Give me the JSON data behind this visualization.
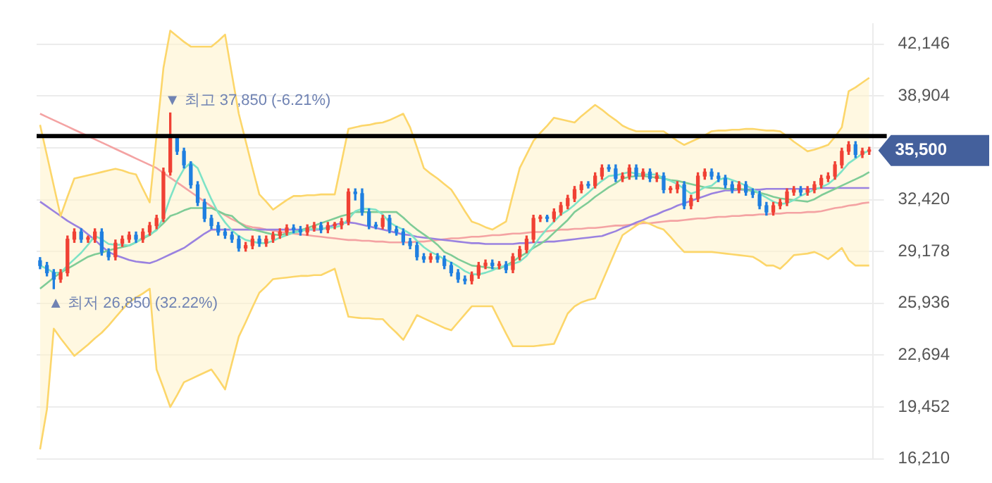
{
  "chart_data": {
    "type": "candlestick",
    "categories": [
      null,
      null,
      null,
      null,
      null,
      null,
      null,
      null,
      null,
      null,
      null,
      null,
      null,
      null,
      null,
      null,
      null,
      null,
      null,
      null,
      null,
      null,
      null,
      null,
      null,
      null,
      null,
      null,
      null,
      null,
      null,
      null,
      null,
      null,
      null,
      null,
      null,
      null,
      null,
      null,
      null,
      null,
      null,
      null,
      null,
      null,
      null,
      null,
      null,
      null,
      null,
      null,
      null,
      null,
      null,
      null,
      null,
      null,
      null,
      null,
      null,
      null,
      null,
      null,
      null,
      null,
      null,
      null,
      null,
      null,
      null,
      null,
      null,
      null,
      null,
      null,
      null,
      null,
      null,
      null,
      null,
      null,
      null,
      null,
      null,
      null,
      null,
      null,
      null,
      null,
      null,
      null,
      null,
      null,
      null,
      null,
      null,
      null,
      null,
      null,
      null,
      null,
      null,
      null,
      null,
      null,
      null,
      null,
      null,
      null,
      null,
      null,
      null,
      null,
      null,
      null,
      null,
      null,
      null,
      null,
      null,
      null
    ],
    "ohlc": [
      [
        28600,
        28800,
        28100,
        28300
      ],
      [
        28300,
        28500,
        27650,
        27850
      ],
      [
        27850,
        28050,
        26850,
        27450
      ],
      [
        27450,
        28050,
        27250,
        27850
      ],
      [
        27850,
        30150,
        27650,
        29950
      ],
      [
        29950,
        30600,
        29750,
        30400
      ],
      [
        30400,
        30600,
        29750,
        29950
      ],
      [
        29950,
        30150,
        29750,
        29950
      ],
      [
        29950,
        30600,
        29750,
        30400
      ],
      [
        30400,
        30600,
        28950,
        29150
      ],
      [
        29150,
        29350,
        28650,
        28850
      ],
      [
        28850,
        29900,
        28650,
        29700
      ],
      [
        29700,
        30150,
        29500,
        29950
      ],
      [
        29950,
        30400,
        29750,
        30200
      ],
      [
        30200,
        30400,
        29750,
        29950
      ],
      [
        29950,
        30600,
        29750,
        30400
      ],
      [
        30400,
        31000,
        30200,
        30800
      ],
      [
        30800,
        31450,
        30600,
        31250
      ],
      [
        31250,
        34400,
        31050,
        34150
      ],
      [
        34150,
        37850,
        33950,
        36250
      ],
      [
        36250,
        36450,
        35250,
        35450
      ],
      [
        35450,
        35650,
        34400,
        34600
      ],
      [
        34600,
        34800,
        33150,
        33350
      ],
      [
        33350,
        33550,
        32050,
        32250
      ],
      [
        32250,
        32450,
        31050,
        31250
      ],
      [
        31250,
        31450,
        30600,
        30800
      ],
      [
        30800,
        31000,
        30200,
        30400
      ],
      [
        30400,
        30600,
        30000,
        30200
      ],
      [
        30200,
        30400,
        29750,
        29950
      ],
      [
        29950,
        30150,
        29200,
        29400
      ],
      [
        29400,
        29750,
        29200,
        29550
      ],
      [
        29550,
        30150,
        29350,
        29950
      ],
      [
        29950,
        30150,
        29500,
        29700
      ],
      [
        29700,
        30150,
        29500,
        29950
      ],
      [
        29950,
        30400,
        29750,
        30200
      ],
      [
        30200,
        30600,
        30000,
        30400
      ],
      [
        30400,
        30850,
        30200,
        30650
      ],
      [
        30650,
        30850,
        30350,
        30550
      ],
      [
        30550,
        30750,
        30200,
        30400
      ],
      [
        30400,
        30850,
        30200,
        30650
      ],
      [
        30650,
        31000,
        30450,
        30800
      ],
      [
        30800,
        31000,
        30350,
        30550
      ],
      [
        30550,
        31000,
        30350,
        30800
      ],
      [
        30800,
        31000,
        30600,
        30850
      ],
      [
        30850,
        31250,
        30600,
        31050
      ],
      [
        31050,
        33100,
        30850,
        32900
      ],
      [
        32900,
        33100,
        32400,
        32800
      ],
      [
        32800,
        33100,
        31450,
        31650
      ],
      [
        31650,
        31850,
        30600,
        30800
      ],
      [
        30800,
        31000,
        30600,
        30750
      ],
      [
        30750,
        31450,
        30600,
        31250
      ],
      [
        31250,
        31450,
        30350,
        30550
      ],
      [
        30550,
        30750,
        30200,
        30400
      ],
      [
        30400,
        30600,
        29600,
        29800
      ],
      [
        29800,
        30000,
        29350,
        29550
      ],
      [
        29550,
        29750,
        28650,
        28850
      ],
      [
        28850,
        29050,
        28500,
        28700
      ],
      [
        28700,
        29050,
        28500,
        28850
      ],
      [
        28850,
        29050,
        28500,
        28700
      ],
      [
        28700,
        28900,
        28100,
        28300
      ],
      [
        28300,
        28500,
        27650,
        27850
      ],
      [
        27850,
        28050,
        27250,
        27450
      ],
      [
        27450,
        27650,
        27150,
        27350
      ],
      [
        27350,
        27900,
        27150,
        27700
      ],
      [
        27700,
        28500,
        27500,
        28300
      ],
      [
        28300,
        28650,
        28100,
        28450
      ],
      [
        28450,
        28650,
        28100,
        28300
      ],
      [
        28300,
        28550,
        28100,
        28350
      ],
      [
        28350,
        28550,
        27850,
        28050
      ],
      [
        28050,
        29050,
        27850,
        28850
      ],
      [
        28850,
        29500,
        28650,
        29300
      ],
      [
        29300,
        30150,
        29100,
        29950
      ],
      [
        29950,
        31450,
        29750,
        31250
      ],
      [
        31250,
        31450,
        31050,
        31300
      ],
      [
        31300,
        31450,
        31050,
        31250
      ],
      [
        31250,
        31850,
        31050,
        31650
      ],
      [
        31650,
        32250,
        31450,
        32050
      ],
      [
        32050,
        32700,
        31850,
        32500
      ],
      [
        32500,
        33250,
        32300,
        33050
      ],
      [
        33050,
        33550,
        32850,
        33350
      ],
      [
        33350,
        33550,
        33150,
        33300
      ],
      [
        33300,
        34100,
        33150,
        33900
      ],
      [
        33900,
        34600,
        33700,
        34400
      ],
      [
        34400,
        34600,
        34200,
        34350
      ],
      [
        34350,
        34600,
        33550,
        33750
      ],
      [
        33750,
        34100,
        33550,
        33900
      ],
      [
        33900,
        34600,
        33700,
        34400
      ],
      [
        34400,
        34600,
        33700,
        33900
      ],
      [
        33900,
        34350,
        33700,
        34150
      ],
      [
        34150,
        34350,
        33550,
        33750
      ],
      [
        33750,
        34100,
        33550,
        33900
      ],
      [
        33900,
        34100,
        32850,
        33050
      ],
      [
        33050,
        33250,
        32850,
        33100
      ],
      [
        33100,
        33550,
        32850,
        33350
      ],
      [
        33350,
        33550,
        31850,
        32050
      ],
      [
        32050,
        32700,
        31850,
        32500
      ],
      [
        32500,
        34100,
        32300,
        33900
      ],
      [
        33900,
        34350,
        33700,
        34150
      ],
      [
        34150,
        34350,
        33700,
        33900
      ],
      [
        33900,
        34100,
        33550,
        33750
      ],
      [
        33750,
        33950,
        33150,
        33350
      ],
      [
        33350,
        33550,
        32850,
        33050
      ],
      [
        33050,
        33550,
        32850,
        33350
      ],
      [
        33350,
        33550,
        32700,
        32900
      ],
      [
        32900,
        33100,
        32550,
        32750
      ],
      [
        32750,
        32950,
        31850,
        32050
      ],
      [
        32050,
        32250,
        31450,
        31650
      ],
      [
        31650,
        32250,
        31450,
        32050
      ],
      [
        32050,
        32450,
        31850,
        32250
      ],
      [
        32250,
        33100,
        32050,
        32900
      ],
      [
        32900,
        33250,
        32700,
        33050
      ],
      [
        33050,
        33250,
        32700,
        32900
      ],
      [
        32900,
        33250,
        32700,
        33050
      ],
      [
        33050,
        33550,
        32850,
        33350
      ],
      [
        33350,
        33950,
        33150,
        33750
      ],
      [
        33750,
        34100,
        33550,
        33900
      ],
      [
        33900,
        34800,
        33700,
        34600
      ],
      [
        34600,
        35650,
        34400,
        35450
      ],
      [
        35450,
        36050,
        35250,
        35850
      ],
      [
        35850,
        36050,
        35050,
        35250
      ],
      [
        35250,
        35650,
        35050,
        35450
      ],
      [
        35450,
        35700,
        35250,
        35500
      ]
    ],
    "series": [
      {
        "type": "line",
        "color": "#7ee3c6",
        "values": [
          28300,
          28100,
          27850,
          27850,
          28300,
          28700,
          29100,
          29600,
          30150,
          29950,
          29650,
          29600,
          29600,
          29550,
          29750,
          30050,
          30250,
          30500,
          31300,
          32550,
          33600,
          34350,
          34750,
          34400,
          33400,
          32450,
          31600,
          31000,
          30500,
          30150,
          29900,
          29800,
          29700,
          29700,
          29850,
          30050,
          30200,
          30350,
          30450,
          30550,
          30600,
          30600,
          30650,
          30700,
          30800,
          31200,
          31700,
          31850,
          31850,
          31800,
          31500,
          31000,
          30750,
          30550,
          30300,
          29850,
          29450,
          29150,
          28950,
          28700,
          28500,
          28250,
          27950,
          27750,
          27750,
          27850,
          28000,
          28200,
          28300,
          28400,
          28550,
          28900,
          29500,
          30100,
          30600,
          31050,
          31500,
          31750,
          32100,
          32500,
          32850,
          33250,
          33600,
          33900,
          33950,
          34050,
          34150,
          34050,
          34000,
          34000,
          34000,
          33750,
          33600,
          33400,
          33100,
          32800,
          32950,
          33200,
          33300,
          33650,
          33800,
          33650,
          33500,
          33300,
          33100,
          32800,
          32550,
          32300,
          32150,
          32200,
          32400,
          32650,
          32850,
          33050,
          33200,
          33400,
          33750,
          34200,
          34700,
          35000,
          35300,
          35500
        ]
      },
      {
        "type": "line",
        "color": "#7fcc97",
        "values": [
          26850,
          27200,
          27550,
          27850,
          28100,
          28350,
          28600,
          28850,
          29000,
          29100,
          29250,
          29350,
          29450,
          29550,
          29750,
          30000,
          30200,
          30550,
          30950,
          31400,
          31550,
          31750,
          31900,
          31900,
          31900,
          31900,
          31700,
          31500,
          31400,
          31000,
          30700,
          30550,
          30450,
          30350,
          30250,
          30200,
          30300,
          30400,
          30500,
          30650,
          30800,
          30950,
          31100,
          31250,
          31400,
          31500,
          31650,
          31650,
          31650,
          31650,
          31650,
          31650,
          31650,
          31300,
          30900,
          30550,
          30250,
          29950,
          29600,
          29150,
          28950,
          28700,
          28500,
          28300,
          28250,
          28200,
          28150,
          28100,
          28300,
          28550,
          28850,
          29100,
          29400,
          29650,
          29950,
          30350,
          30750,
          31150,
          31650,
          31950,
          32250,
          32600,
          32900,
          33200,
          33450,
          33750,
          33850,
          33900,
          33900,
          33850,
          33800,
          33750,
          33650,
          33600,
          33500,
          33400,
          33300,
          33200,
          33150,
          33150,
          33100,
          33100,
          33100,
          33050,
          32950,
          32850,
          32750,
          32600,
          32500,
          32450,
          32400,
          32350,
          32300,
          32450,
          32700,
          32900,
          33100,
          33300,
          33500,
          33700,
          33900,
          34150
        ],
        "upper": [
          37100,
          35200,
          33300,
          31400,
          32600,
          33750,
          33850,
          33950,
          34050,
          34150,
          34250,
          34350,
          34250,
          34100,
          34000,
          33100,
          32250,
          36450,
          40650,
          43000,
          42650,
          42300,
          42000,
          42000,
          42000,
          42000,
          42350,
          42750,
          40250,
          37800,
          36100,
          34400,
          32750,
          32300,
          31800,
          32100,
          32400,
          32650,
          32650,
          32700,
          32700,
          32750,
          32750,
          32750,
          34800,
          36850,
          36950,
          37050,
          37100,
          37200,
          37250,
          37400,
          37600,
          37800,
          36950,
          35700,
          34400,
          34050,
          33750,
          33400,
          33050,
          32400,
          31700,
          31050,
          30900,
          30700,
          30550,
          30800,
          31050,
          32750,
          34400,
          35250,
          36100,
          36600,
          37050,
          37550,
          37450,
          37350,
          37250,
          37650,
          38000,
          38350,
          38050,
          37700,
          37400,
          37050,
          36850,
          36700,
          36700,
          36700,
          36700,
          36700,
          36400,
          36100,
          35850,
          36050,
          36250,
          36450,
          36700,
          36750,
          36750,
          36800,
          36800,
          36850,
          36850,
          36800,
          36750,
          36750,
          36700,
          36400,
          36050,
          35750,
          35450,
          35550,
          35700,
          35850,
          36350,
          36950,
          39200,
          39450,
          39750,
          40050
        ],
        "lower": [
          16800,
          19300,
          24350,
          23750,
          23200,
          22650,
          23000,
          23350,
          23750,
          24100,
          24550,
          25050,
          25550,
          26000,
          26300,
          26550,
          26850,
          21800,
          20650,
          19450,
          20200,
          21000,
          21200,
          21400,
          21600,
          21800,
          21200,
          20550,
          22200,
          23850,
          24750,
          25700,
          26600,
          27000,
          27450,
          27500,
          27550,
          27600,
          27650,
          27650,
          27700,
          27700,
          27900,
          28100,
          26600,
          25100,
          25050,
          25000,
          25000,
          24950,
          24950,
          24500,
          24100,
          23650,
          24400,
          25200,
          25000,
          24800,
          24600,
          24400,
          24250,
          24750,
          25250,
          25750,
          25750,
          25750,
          25750,
          24900,
          24050,
          23250,
          23250,
          23250,
          23250,
          23300,
          23350,
          23400,
          24350,
          25300,
          25750,
          26000,
          26150,
          26250,
          27250,
          28250,
          29250,
          30200,
          30500,
          30800,
          31050,
          30900,
          30700,
          30550,
          30100,
          29600,
          29150,
          29150,
          29150,
          29150,
          29150,
          29100,
          29050,
          29000,
          28950,
          28900,
          28850,
          28600,
          28300,
          28300,
          28100,
          28500,
          28950,
          29000,
          29050,
          29150,
          28950,
          28700,
          29050,
          29400,
          28650,
          28300,
          28300,
          28300
        ]
      },
      {
        "type": "line",
        "color": "#fcd66a",
        "values": [
          37100,
          35200,
          33300,
          31400,
          32600,
          33750,
          33850,
          33950,
          34050,
          34150,
          34250,
          34350,
          34250,
          34100,
          34000,
          33100,
          32250,
          36450,
          40650,
          43000,
          42650,
          42300,
          42000,
          42000,
          42000,
          42000,
          42350,
          42750,
          40250,
          37800,
          36100,
          34400,
          32750,
          32300,
          31800,
          32100,
          32400,
          32650,
          32650,
          32700,
          32700,
          32750,
          32750,
          32750,
          34800,
          36850,
          36950,
          37050,
          37100,
          37200,
          37250,
          37400,
          37600,
          37800,
          36950,
          35700,
          34400,
          34050,
          33750,
          33400,
          33050,
          32400,
          31700,
          31050,
          30900,
          30700,
          30550,
          30800,
          31050,
          32750,
          34400,
          35250,
          36100,
          36600,
          37050,
          37550,
          37450,
          37350,
          37250,
          37650,
          38000,
          38350,
          38050,
          37700,
          37400,
          37050,
          36850,
          36700,
          36700,
          36700,
          36700,
          36700,
          36400,
          36100,
          35850,
          36050,
          36250,
          36450,
          36700,
          36750,
          36750,
          36800,
          36800,
          36850,
          36850,
          36800,
          36750,
          36750,
          36700,
          36400,
          36050,
          35750,
          35450,
          35550,
          35700,
          35850,
          36350,
          36950,
          39200,
          39450,
          39750,
          40050
        ]
      },
      {
        "type": "line",
        "color": "#fcd66a",
        "values": [
          16800,
          19300,
          24350,
          23750,
          23200,
          22650,
          23000,
          23350,
          23750,
          24100,
          24550,
          25050,
          25550,
          26000,
          26300,
          26550,
          26850,
          21800,
          20650,
          19450,
          20200,
          21000,
          21200,
          21400,
          21600,
          21800,
          21200,
          20550,
          22200,
          23850,
          24750,
          25700,
          26600,
          27000,
          27450,
          27500,
          27550,
          27600,
          27650,
          27650,
          27700,
          27700,
          27900,
          28100,
          26600,
          25100,
          25050,
          25000,
          25000,
          24950,
          24950,
          24500,
          24100,
          23650,
          24400,
          25200,
          25000,
          24800,
          24600,
          24400,
          24250,
          24750,
          25250,
          25750,
          25750,
          25750,
          25750,
          24900,
          24050,
          23250,
          23250,
          23250,
          23250,
          23300,
          23350,
          23400,
          24350,
          25300,
          25750,
          26000,
          26150,
          26250,
          27250,
          28250,
          29250,
          30200,
          30500,
          30800,
          31050,
          30900,
          30700,
          30550,
          30100,
          29600,
          29150,
          29150,
          29150,
          29150,
          29150,
          29100,
          29050,
          29000,
          28950,
          28900,
          28850,
          28600,
          28300,
          28300,
          28100,
          28500,
          28950,
          29000,
          29050,
          29150,
          28950,
          28700,
          29050,
          29400,
          28650,
          28300,
          28300,
          28300
        ]
      },
      {
        "type": "line",
        "color": "#9a82e0",
        "values": [
          32300,
          32000,
          31700,
          31400,
          31100,
          30850,
          30600,
          30250,
          29900,
          29500,
          29150,
          28950,
          28800,
          28650,
          28550,
          28500,
          28450,
          28600,
          28800,
          29000,
          29200,
          29400,
          29700,
          30000,
          30300,
          30550,
          30550,
          30550,
          30550,
          30550,
          30550,
          30550,
          30550,
          30550,
          30550,
          30550,
          30550,
          30550,
          30550,
          30550,
          30550,
          30550,
          30700,
          30850,
          30950,
          31000,
          30950,
          30850,
          30750,
          30650,
          30550,
          30450,
          30350,
          30250,
          30200,
          30100,
          30050,
          30000,
          29950,
          29900,
          29850,
          29800,
          29750,
          29700,
          29700,
          29650,
          29650,
          29650,
          29650,
          29650,
          29700,
          29700,
          29750,
          29750,
          29800,
          29800,
          29850,
          29900,
          29950,
          30000,
          30050,
          30100,
          30150,
          30300,
          30450,
          30650,
          30800,
          31000,
          31150,
          31350,
          31500,
          31700,
          31850,
          32050,
          32200,
          32350,
          32500,
          32650,
          32800,
          32900,
          33000,
          33000,
          33050,
          33050,
          33050,
          33050,
          33100,
          33100,
          33100,
          33100,
          33100,
          33100,
          33100,
          33100,
          33150,
          33150,
          33150,
          33150,
          33150,
          33150,
          33150,
          33150
        ]
      },
      {
        "type": "line",
        "color": "#f4a3a3",
        "values": [
          37800,
          37600,
          37400,
          37200,
          37000,
          36800,
          36600,
          36400,
          36200,
          36000,
          35800,
          35600,
          35400,
          35200,
          35000,
          34800,
          34600,
          34400,
          34100,
          33800,
          33500,
          33200,
          32900,
          32600,
          32300,
          32000,
          31700,
          31450,
          31200,
          31000,
          30800,
          30700,
          30650,
          30550,
          30500,
          30400,
          30350,
          30300,
          30250,
          30200,
          30150,
          30100,
          30050,
          30000,
          29950,
          29900,
          29900,
          29850,
          29850,
          29800,
          29800,
          29750,
          29750,
          29750,
          29750,
          29800,
          29800,
          29850,
          29900,
          29950,
          30000,
          30000,
          30050,
          30100,
          30100,
          30150,
          30200,
          30200,
          30250,
          30300,
          30300,
          30350,
          30400,
          30400,
          30450,
          30500,
          30550,
          30550,
          30600,
          30600,
          30650,
          30650,
          30700,
          30750,
          30800,
          30800,
          30850,
          30900,
          30950,
          30950,
          31000,
          31050,
          31100,
          31100,
          31150,
          31200,
          31250,
          31250,
          31300,
          31350,
          31350,
          31400,
          31400,
          31450,
          31450,
          31500,
          31500,
          31550,
          31550,
          31600,
          31600,
          31600,
          31650,
          31650,
          31700,
          31800,
          31900,
          31950,
          32050,
          32100,
          32200,
          32250
        ]
      }
    ],
    "ylim": [
      16210,
      43400
    ],
    "yticks": [
      {
        "value": 16210,
        "label": "16,210"
      },
      {
        "value": 19452,
        "label": "19,452"
      },
      {
        "value": 22694,
        "label": "22,694"
      },
      {
        "value": 25936,
        "label": "25,936"
      },
      {
        "value": 29178,
        "label": "29,178"
      },
      {
        "value": 32420,
        "label": "32,420"
      },
      {
        "value": 35662,
        "label": null
      },
      {
        "value": 38904,
        "label": "38,904"
      },
      {
        "value": 42146,
        "label": "42,146"
      }
    ],
    "ref_lines": [
      {
        "axis": "y",
        "value": 36400,
        "color": "#000000"
      }
    ],
    "annotations": [
      "▼ 최고 37,850 (-6.21%)",
      "▲ 최저 26,850 (32.22%)",
      "35,500"
    ],
    "grid": "y",
    "legend": false,
    "tick_labels": "y"
  }
}
